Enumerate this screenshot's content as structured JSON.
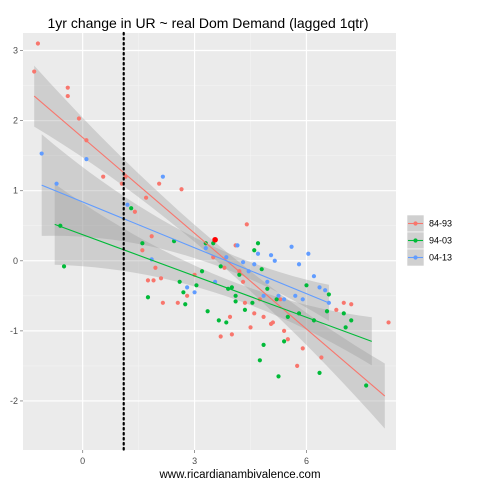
{
  "chart_data": {
    "type": "scatter",
    "title": "1yr change in UR ~ real Dom Demand (lagged 1qtr)",
    "xlabel": "www.ricardianambivalence.com",
    "ylabel": "",
    "xlim": [
      -1.6,
      8.4
    ],
    "ylim": [
      -2.7,
      3.25
    ],
    "x_ticks": [
      0,
      3,
      6
    ],
    "y_ticks": [
      -2,
      -1,
      0,
      1,
      2,
      3
    ],
    "grid": true,
    "panel_color": "#ebebeb",
    "vline": {
      "x": 1.1,
      "style": "dotted",
      "color": "#000000"
    },
    "legend": {
      "position": "right",
      "title": ""
    },
    "series": [
      {
        "name": "84-93",
        "color": "#f8766d",
        "points": [
          [
            -1.2,
            3.1
          ],
          [
            -1.3,
            2.7
          ],
          [
            -0.4,
            2.47
          ],
          [
            -0.4,
            2.35
          ],
          [
            -0.1,
            2.03
          ],
          [
            0.1,
            1.72
          ],
          [
            0.55,
            1.2
          ],
          [
            1.15,
            1.2
          ],
          [
            1.05,
            1.1
          ],
          [
            1.7,
            0.9
          ],
          [
            2.05,
            1.1
          ],
          [
            2.65,
            1.02
          ],
          [
            1.4,
            0.7
          ],
          [
            1.85,
            0.35
          ],
          [
            1.6,
            0.15
          ],
          [
            2.1,
            -0.25
          ],
          [
            1.95,
            -0.1
          ],
          [
            1.75,
            -0.28
          ],
          [
            1.9,
            -0.28
          ],
          [
            2.15,
            -0.6
          ],
          [
            2.55,
            -0.6
          ],
          [
            3.0,
            -0.2
          ],
          [
            3.5,
            0.05
          ],
          [
            3.8,
            -0.1
          ],
          [
            4.1,
            0.22
          ],
          [
            4.2,
            -0.15
          ],
          [
            4.3,
            -0.3
          ],
          [
            4.4,
            0.52
          ],
          [
            4.35,
            -0.6
          ],
          [
            4.6,
            -0.75
          ],
          [
            4.75,
            -0.55
          ],
          [
            4.5,
            -0.95
          ],
          [
            4.85,
            -0.8
          ],
          [
            5.3,
            -0.55
          ],
          [
            5.05,
            -0.9
          ],
          [
            5.5,
            -1.12
          ],
          [
            5.4,
            -1.0
          ],
          [
            5.9,
            -1.25
          ],
          [
            5.75,
            -1.5
          ],
          [
            6.4,
            -1.38
          ],
          [
            6.8,
            -0.7
          ],
          [
            7.0,
            -0.6
          ],
          [
            7.2,
            -0.62
          ],
          [
            8.2,
            -0.88
          ],
          [
            4.0,
            -1.05
          ],
          [
            3.7,
            -1.08
          ],
          [
            3.95,
            -0.8
          ],
          [
            5.1,
            -0.88
          ],
          [
            2.8,
            -0.5
          ]
        ],
        "fit_start": [
          -1.3,
          2.35
        ],
        "fit_end": [
          8.1,
          -1.93
        ]
      },
      {
        "name": "94-03",
        "color": "#00ba38",
        "points": [
          [
            -0.6,
            0.5
          ],
          [
            -0.5,
            -0.08
          ],
          [
            1.3,
            0.75
          ],
          [
            1.6,
            0.25
          ],
          [
            1.75,
            -0.52
          ],
          [
            2.45,
            0.28
          ],
          [
            2.6,
            -0.3
          ],
          [
            2.7,
            -0.45
          ],
          [
            2.75,
            -0.62
          ],
          [
            3.05,
            -0.35
          ],
          [
            3.2,
            -0.15
          ],
          [
            3.3,
            0.25
          ],
          [
            3.5,
            0.25
          ],
          [
            3.7,
            -0.08
          ],
          [
            3.65,
            -0.85
          ],
          [
            3.9,
            -0.4
          ],
          [
            4.0,
            -0.38
          ],
          [
            4.1,
            -0.5
          ],
          [
            4.2,
            -0.2
          ],
          [
            4.35,
            -0.7
          ],
          [
            4.55,
            -0.6
          ],
          [
            4.6,
            0.15
          ],
          [
            4.7,
            0.25
          ],
          [
            4.8,
            -0.12
          ],
          [
            4.95,
            -0.4
          ],
          [
            5.2,
            -0.55
          ],
          [
            5.5,
            -0.8
          ],
          [
            5.4,
            -1.15
          ],
          [
            5.8,
            -0.75
          ],
          [
            6.0,
            -0.35
          ],
          [
            6.2,
            -0.85
          ],
          [
            6.55,
            -0.72
          ],
          [
            6.6,
            -0.48
          ],
          [
            7.0,
            -0.75
          ],
          [
            7.05,
            -0.95
          ],
          [
            7.2,
            -0.85
          ],
          [
            7.6,
            -1.78
          ],
          [
            6.35,
            -1.6
          ],
          [
            5.25,
            -1.65
          ],
          [
            4.85,
            -1.2
          ],
          [
            4.75,
            -1.42
          ],
          [
            4.1,
            -0.58
          ],
          [
            3.85,
            -0.88
          ],
          [
            3.35,
            -0.72
          ]
        ],
        "fit_start": [
          -0.75,
          0.52
        ],
        "fit_end": [
          7.75,
          -1.15
        ]
      },
      {
        "name": "04-13",
        "color": "#619cff",
        "points": [
          [
            -1.1,
            1.53
          ],
          [
            -0.7,
            1.1
          ],
          [
            0.1,
            1.45
          ],
          [
            1.2,
            0.8
          ],
          [
            1.85,
            0.02
          ],
          [
            2.15,
            1.2
          ],
          [
            2.8,
            -0.38
          ],
          [
            3.0,
            -0.45
          ],
          [
            3.3,
            0.18
          ],
          [
            3.55,
            -0.3
          ],
          [
            3.85,
            0.05
          ],
          [
            4.15,
            0.22
          ],
          [
            4.45,
            -0.15
          ],
          [
            4.6,
            -0.05
          ],
          [
            4.7,
            0.1
          ],
          [
            4.85,
            -0.5
          ],
          [
            5.05,
            0.08
          ],
          [
            5.25,
            -0.5
          ],
          [
            5.4,
            -0.55
          ],
          [
            5.6,
            0.2
          ],
          [
            5.7,
            -0.5
          ],
          [
            5.9,
            -0.55
          ],
          [
            6.05,
            0.1
          ],
          [
            6.2,
            -0.22
          ],
          [
            6.35,
            -0.38
          ],
          [
            6.5,
            -0.42
          ],
          [
            6.6,
            -0.6
          ],
          [
            4.95,
            -0.3
          ],
          [
            4.3,
            -0.02
          ],
          [
            5.15,
            0.0
          ],
          [
            5.8,
            -0.05
          ]
        ],
        "fit_start": [
          -1.1,
          1.08
        ],
        "fit_end": [
          6.6,
          -0.6
        ]
      }
    ],
    "highlight_points": [
      {
        "x": 3.55,
        "y": 0.3,
        "color": "#ff0000"
      }
    ]
  }
}
